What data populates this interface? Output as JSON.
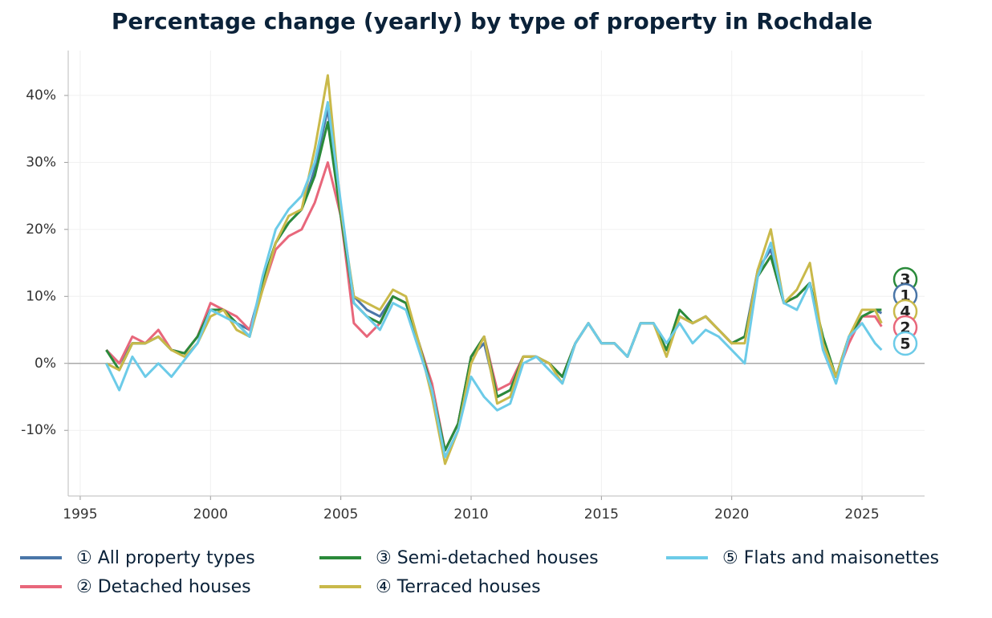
{
  "chart_data": {
    "type": "line",
    "title": "Percentage change (yearly) by type of property in Rochdale",
    "x": [
      1996,
      1996.5,
      1997,
      1997.5,
      1998,
      1998.5,
      1999,
      1999.5,
      2000,
      2000.5,
      2001,
      2001.5,
      2002,
      2002.5,
      2003,
      2003.5,
      2004,
      2004.5,
      2005,
      2005.5,
      2006,
      2006.5,
      2007,
      2007.5,
      2008,
      2008.5,
      2009,
      2009.5,
      2010,
      2010.5,
      2011,
      2011.5,
      2012,
      2012.5,
      2013,
      2013.5,
      2014,
      2014.5,
      2015,
      2015.5,
      2016,
      2016.5,
      2017,
      2017.5,
      2018,
      2018.5,
      2019,
      2019.5,
      2020,
      2020.5,
      2021,
      2021.5,
      2022,
      2022.5,
      2023,
      2023.5,
      2024,
      2024.5,
      2025,
      2025.5,
      2025.75
    ],
    "series": [
      {
        "name": "① All property types",
        "end_label": "1",
        "color": "#4a76a8",
        "values": [
          2,
          0,
          3,
          3,
          4,
          2,
          1.5,
          4,
          8,
          8,
          6,
          5,
          12,
          18,
          21,
          23,
          29,
          38,
          22,
          10,
          8,
          7,
          10,
          9,
          3,
          -4,
          -13,
          -9,
          1,
          3,
          -5,
          -4,
          1,
          1,
          0,
          -2,
          3,
          6,
          3,
          3,
          1,
          6,
          6,
          2,
          7,
          6,
          7,
          5,
          3,
          4,
          14,
          17,
          9,
          10,
          12,
          3,
          -2,
          4,
          7,
          8,
          7.5
        ]
      },
      {
        "name": "② Detached houses",
        "end_label": "2",
        "color": "#e8677b",
        "values": [
          2,
          0,
          4,
          3,
          5,
          2,
          1.5,
          4,
          9,
          8,
          7,
          5,
          11,
          17,
          19,
          20,
          24,
          30,
          22,
          6,
          4,
          6,
          10,
          9,
          3,
          -3,
          -13,
          -9,
          1,
          4,
          -4,
          -3,
          1,
          1,
          0,
          -2,
          3,
          6,
          3,
          3,
          1,
          6,
          6,
          2,
          7,
          6,
          7,
          5,
          3,
          4,
          13,
          16,
          9,
          10,
          12,
          3,
          -2,
          3,
          7,
          7,
          5.5
        ]
      },
      {
        "name": "③ Semi-detached houses",
        "end_label": "3",
        "color": "#2a8a3a",
        "values": [
          2,
          -1,
          3,
          3,
          4,
          2,
          1.5,
          4,
          8,
          8,
          6,
          4,
          12,
          18,
          21,
          23,
          28,
          36,
          22,
          9,
          7,
          6,
          10,
          9,
          3,
          -4,
          -13,
          -9,
          1,
          4,
          -5,
          -4,
          1,
          1,
          0,
          -2,
          3,
          6,
          3,
          3,
          1,
          6,
          6,
          2,
          8,
          6,
          7,
          5,
          3,
          4,
          13,
          16,
          9,
          10,
          12,
          4,
          -2,
          4,
          7,
          8,
          8
        ]
      },
      {
        "name": "④ Terraced houses",
        "end_label": "4",
        "color": "#c9b94a",
        "values": [
          0,
          -1,
          3,
          3,
          4,
          2,
          1,
          3,
          7,
          8,
          5,
          4,
          11,
          18,
          22,
          23,
          32,
          43,
          23,
          10,
          9,
          8,
          11,
          10,
          3,
          -5,
          -15,
          -10,
          0,
          4,
          -6,
          -5,
          1,
          1,
          0,
          -3,
          3,
          6,
          3,
          3,
          1,
          6,
          6,
          1,
          7,
          6,
          7,
          5,
          3,
          3,
          14,
          20,
          9,
          11,
          15,
          3,
          -2,
          4,
          8,
          8,
          6
        ]
      },
      {
        "name": "⑤ Flats and maisonettes",
        "end_label": "5",
        "color": "#6ccbe8",
        "values": [
          0,
          -4,
          1,
          -2,
          0,
          -2,
          0.5,
          3,
          8,
          7,
          6,
          4,
          13,
          20,
          23,
          25,
          30,
          39,
          24,
          9,
          7,
          5,
          9,
          8,
          2,
          -4,
          -14,
          -10,
          -2,
          -5,
          -7,
          -6,
          0,
          1,
          -1,
          -3,
          3,
          6,
          3,
          3,
          1,
          6,
          6,
          3,
          6,
          3,
          5,
          4,
          2,
          0,
          13,
          18,
          9,
          8,
          12,
          2,
          -3,
          4,
          6,
          3,
          2
        ]
      }
    ],
    "xlim": [
      1994.54,
      2027.4
    ],
    "ylim": [
      -19.8,
      46.7
    ],
    "xticks": [
      1995,
      2000,
      2005,
      2010,
      2015,
      2020,
      2025
    ],
    "yticks": [
      {
        "value": -10,
        "label": "-10%"
      },
      {
        "value": 0,
        "label": "0%"
      },
      {
        "value": 10,
        "label": "10%"
      },
      {
        "value": 20,
        "label": "20%"
      },
      {
        "value": 30,
        "label": "30%"
      },
      {
        "value": 40,
        "label": "40%"
      }
    ],
    "grid": true
  }
}
